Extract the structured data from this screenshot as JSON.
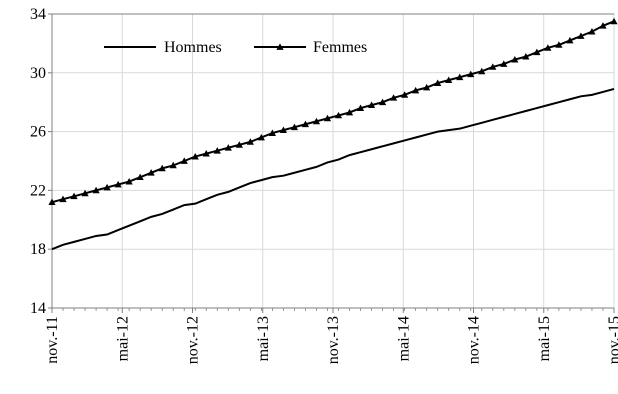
{
  "chart_data": {
    "type": "line",
    "ylim": [
      14,
      34
    ],
    "y_ticks": [
      14,
      18,
      22,
      26,
      30,
      34
    ],
    "x_tick_labels": [
      "nov.-11",
      "mai-12",
      "nov.-12",
      "mai-13",
      "nov.-13",
      "mai-14",
      "nov.-14",
      "mai-15",
      "nov.-15"
    ],
    "grid": true,
    "legend_position": "top-left",
    "series": [
      {
        "name": "Hommes",
        "marker": "none",
        "values": [
          18.0,
          18.3,
          18.5,
          18.7,
          18.9,
          19.0,
          19.3,
          19.6,
          19.9,
          20.2,
          20.4,
          20.7,
          21.0,
          21.1,
          21.4,
          21.7,
          21.9,
          22.2,
          22.5,
          22.7,
          22.9,
          23.0,
          23.2,
          23.4,
          23.6,
          23.9,
          24.1,
          24.4,
          24.6,
          24.8,
          25.0,
          25.2,
          25.4,
          25.6,
          25.8,
          26.0,
          26.1,
          26.2,
          26.4,
          26.6,
          26.8,
          27.0,
          27.2,
          27.4,
          27.6,
          27.8,
          28.0,
          28.2,
          28.4,
          28.5,
          28.7,
          28.9
        ]
      },
      {
        "name": "Femmes",
        "marker": "triangle",
        "values": [
          21.2,
          21.4,
          21.6,
          21.8,
          22.0,
          22.2,
          22.4,
          22.6,
          22.9,
          23.2,
          23.5,
          23.7,
          24.0,
          24.3,
          24.5,
          24.7,
          24.9,
          25.1,
          25.3,
          25.6,
          25.9,
          26.1,
          26.3,
          26.5,
          26.7,
          26.9,
          27.1,
          27.3,
          27.6,
          27.8,
          28.0,
          28.3,
          28.5,
          28.8,
          29.0,
          29.3,
          29.5,
          29.7,
          29.9,
          30.1,
          30.4,
          30.6,
          30.9,
          31.1,
          31.4,
          31.7,
          31.9,
          32.2,
          32.5,
          32.8,
          33.2,
          33.5
        ]
      }
    ],
    "colors": {
      "line": "#000000",
      "grid": "#d9d9d9",
      "axis": "#808080"
    }
  }
}
